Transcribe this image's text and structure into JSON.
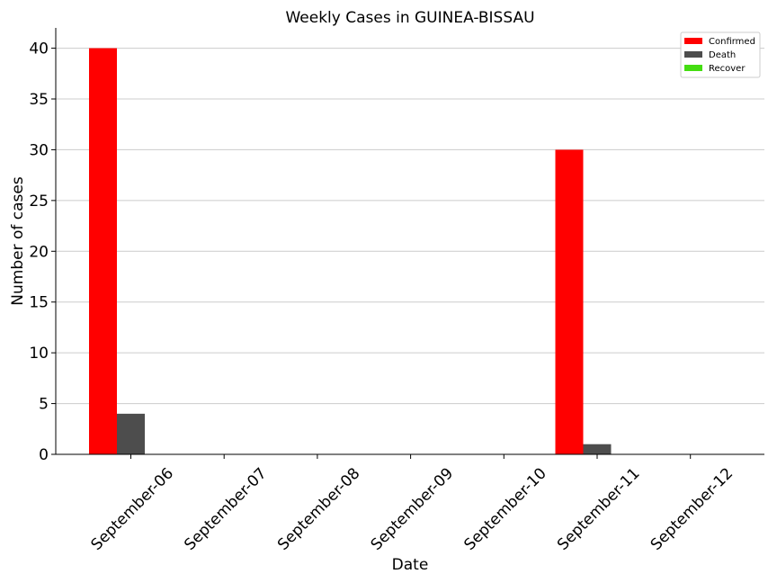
{
  "chart_data": {
    "type": "bar",
    "title": "Weekly Cases in GUINEA-BISSAU",
    "xlabel": "Date",
    "ylabel": "Number of cases",
    "categories": [
      "September-06",
      "September-07",
      "September-08",
      "September-09",
      "September-10",
      "September-11",
      "September-12"
    ],
    "series": [
      {
        "name": "Confirmed",
        "color": "#ff0000",
        "values": [
          40,
          0,
          0,
          0,
          0,
          30,
          0
        ]
      },
      {
        "name": "Death",
        "color": "#4d4d4d",
        "values": [
          4,
          0,
          0,
          0,
          0,
          1,
          0
        ]
      },
      {
        "name": "Recover",
        "color": "#44dd11",
        "values": [
          0,
          0,
          0,
          0,
          0,
          0,
          0
        ]
      }
    ],
    "ylim": [
      0,
      42
    ],
    "yticks": [
      0,
      5,
      10,
      15,
      20,
      25,
      30,
      35,
      40
    ],
    "grid": "y",
    "legend_position": "top-right"
  }
}
